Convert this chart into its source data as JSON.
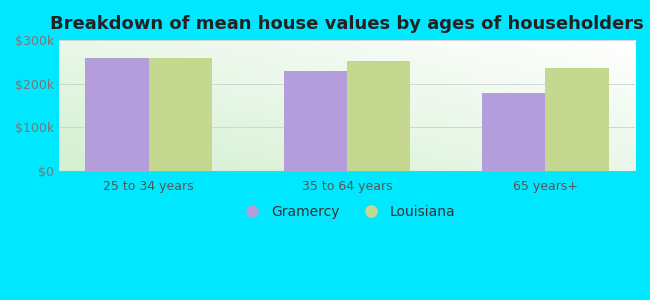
{
  "title": "Breakdown of mean house values by ages of householders",
  "categories": [
    "25 to 34 years",
    "35 to 64 years",
    "65 years+"
  ],
  "gramercy_values": [
    260000,
    230000,
    178000
  ],
  "louisiana_values": [
    258000,
    253000,
    237000
  ],
  "gramercy_color": "#b39ddb",
  "louisiana_color": "#c5d890",
  "background_outer": "#00e8ff",
  "ylim": [
    0,
    300000
  ],
  "yticks": [
    0,
    100000,
    200000,
    300000
  ],
  "ytick_labels": [
    "$0",
    "$100k",
    "$200k",
    "$300k"
  ],
  "bar_width": 0.32,
  "legend_labels": [
    "Gramercy",
    "Louisiana"
  ],
  "title_fontsize": 13,
  "tick_fontsize": 9,
  "legend_fontsize": 10
}
